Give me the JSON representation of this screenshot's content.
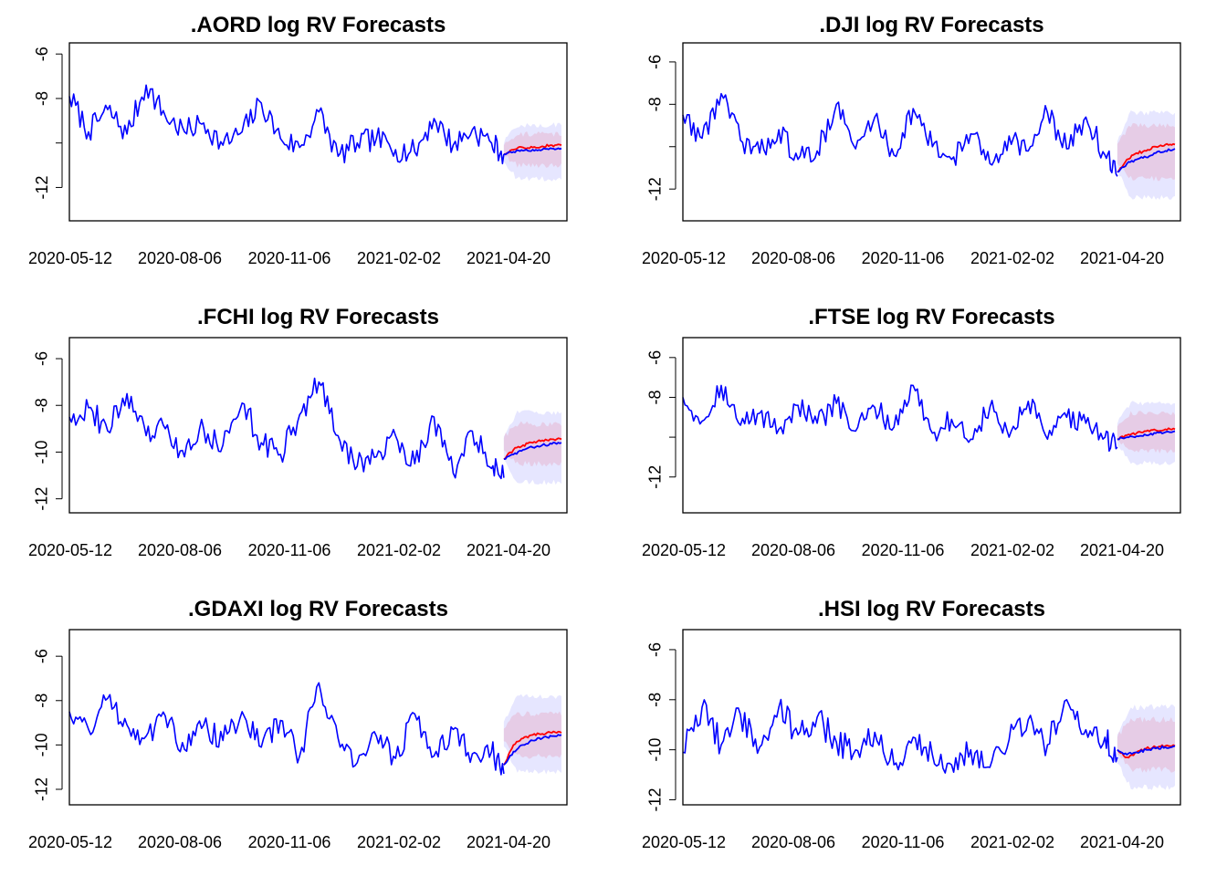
{
  "chart_data": [
    {
      "type": "line",
      "title": ".AORD log RV Forecasts",
      "x_tick_labels": [
        "2020-05-12",
        "2020-08-06",
        "2020-11-06",
        "2021-02-02",
        "2021-04-20"
      ],
      "y_ticks": [
        -6,
        -8,
        -12
      ],
      "ylim": [
        -13.5,
        -5.5
      ],
      "x_range": [
        "2020-05-12",
        "2021-05-10"
      ],
      "forecast_start": "2021-03-25",
      "grid": false,
      "series": [
        {
          "color": "#0000ff",
          "x": [
            "2020-05-12",
            "2020-05-26",
            "2020-06-09",
            "2020-06-23",
            "2020-07-07",
            "2020-07-21",
            "2020-08-04",
            "2020-08-18",
            "2020-09-01",
            "2020-09-15",
            "2020-09-29",
            "2020-10-13",
            "2020-10-27",
            "2020-11-10",
            "2020-11-24",
            "2020-12-08",
            "2020-12-22",
            "2021-01-05",
            "2021-01-19",
            "2021-02-02",
            "2021-02-16",
            "2021-03-02",
            "2021-03-16",
            "2021-03-25"
          ],
          "values": [
            -7.9,
            -9.5,
            -8.5,
            -9.6,
            -7.4,
            -8.8,
            -9.5,
            -9.1,
            -10.1,
            -9.5,
            -8.2,
            -9.8,
            -10.2,
            -8.6,
            -10.6,
            -10.0,
            -9.8,
            -10.3,
            -10.4,
            -8.9,
            -10.1,
            -9.4,
            -10.0,
            -10.5
          ]
        },
        {
          "color": "#ff0000",
          "x": [
            "2021-03-25",
            "2021-04-01",
            "2021-04-08",
            "2021-04-15",
            "2021-04-22",
            "2021-04-29",
            "2021-05-06"
          ],
          "values": [
            -10.5,
            -10.3,
            -10.2,
            -10.2,
            -10.15,
            -10.1,
            -10.1
          ]
        },
        {
          "color": "#0000ff",
          "x": [
            "2021-03-25",
            "2021-04-01",
            "2021-04-08",
            "2021-04-15",
            "2021-04-22",
            "2021-04-29",
            "2021-05-06"
          ],
          "values": [
            -10.5,
            -10.4,
            -10.35,
            -10.3,
            -10.3,
            -10.25,
            -10.25
          ]
        }
      ],
      "bands": [
        {
          "color": "#e6e6ff",
          "upper": -9.2,
          "lower": -11.6
        },
        {
          "color": "#e6cce6",
          "upper": -9.6,
          "lower": -11.0
        }
      ]
    },
    {
      "type": "line",
      "title": ".DJI log RV Forecasts",
      "x_tick_labels": [
        "2020-05-12",
        "2020-08-06",
        "2020-11-06",
        "2021-02-02",
        "2021-04-20"
      ],
      "y_ticks": [
        -6,
        -8,
        -12
      ],
      "ylim": [
        -13.5,
        -5.1
      ],
      "x_range": [
        "2020-05-12",
        "2021-05-10"
      ],
      "forecast_start": "2021-03-25",
      "grid": false,
      "series": [
        {
          "color": "#0000ff",
          "x": [
            "2020-05-12",
            "2020-05-26",
            "2020-06-09",
            "2020-06-23",
            "2020-07-07",
            "2020-07-21",
            "2020-08-04",
            "2020-08-18",
            "2020-09-01",
            "2020-09-15",
            "2020-09-29",
            "2020-10-13",
            "2020-10-27",
            "2020-11-10",
            "2020-11-24",
            "2020-12-08",
            "2020-12-22",
            "2021-01-05",
            "2021-01-19",
            "2021-02-02",
            "2021-02-16",
            "2021-03-02",
            "2021-03-16",
            "2021-03-25"
          ],
          "values": [
            -8.5,
            -9.6,
            -7.5,
            -9.7,
            -10.3,
            -9.2,
            -10.6,
            -10.2,
            -8.0,
            -10.1,
            -8.6,
            -10.4,
            -8.2,
            -10.0,
            -10.6,
            -9.4,
            -10.8,
            -9.5,
            -10.2,
            -8.4,
            -10.1,
            -8.6,
            -10.4,
            -11.4
          ]
        },
        {
          "color": "#ff0000",
          "x": [
            "2021-03-25",
            "2021-04-01",
            "2021-04-08",
            "2021-04-15",
            "2021-04-22",
            "2021-04-29",
            "2021-05-06"
          ],
          "values": [
            -11.2,
            -10.6,
            -10.3,
            -10.2,
            -10.0,
            -9.9,
            -9.9
          ]
        },
        {
          "color": "#0000ff",
          "x": [
            "2021-03-25",
            "2021-04-01",
            "2021-04-08",
            "2021-04-15",
            "2021-04-22",
            "2021-04-29",
            "2021-05-06"
          ],
          "values": [
            -11.2,
            -10.8,
            -10.6,
            -10.5,
            -10.3,
            -10.2,
            -10.1
          ]
        }
      ],
      "bands": [
        {
          "color": "#e6e6ff",
          "upper": -8.4,
          "lower": -12.4
        },
        {
          "color": "#e6cce6",
          "upper": -9.0,
          "lower": -11.5
        }
      ]
    },
    {
      "type": "line",
      "title": ".FCHI log RV Forecasts",
      "x_tick_labels": [
        "2020-05-12",
        "2020-08-06",
        "2020-11-06",
        "2021-02-02",
        "2021-04-20"
      ],
      "y_ticks": [
        -6,
        -8,
        -10,
        -12
      ],
      "ylim": [
        -12.6,
        -5.1
      ],
      "x_range": [
        "2020-05-12",
        "2021-05-10"
      ],
      "forecast_start": "2021-03-25",
      "grid": false,
      "series": [
        {
          "color": "#0000ff",
          "x": [
            "2020-05-12",
            "2020-05-26",
            "2020-06-09",
            "2020-06-23",
            "2020-07-07",
            "2020-07-21",
            "2020-08-04",
            "2020-08-18",
            "2020-09-01",
            "2020-09-15",
            "2020-09-29",
            "2020-10-13",
            "2020-10-27",
            "2020-11-10",
            "2020-11-24",
            "2020-12-08",
            "2020-12-22",
            "2021-01-05",
            "2021-01-19",
            "2021-02-02",
            "2021-02-16",
            "2021-03-02",
            "2021-03-16",
            "2021-03-25"
          ],
          "values": [
            -8.5,
            -8.1,
            -9.1,
            -7.5,
            -9.3,
            -9.0,
            -10.2,
            -9.0,
            -9.7,
            -7.9,
            -9.6,
            -10.1,
            -8.4,
            -7.0,
            -9.3,
            -10.6,
            -10.2,
            -9.3,
            -10.5,
            -8.5,
            -10.9,
            -9.1,
            -10.7,
            -11.1
          ]
        },
        {
          "color": "#ff0000",
          "x": [
            "2021-03-25",
            "2021-04-01",
            "2021-04-08",
            "2021-04-15",
            "2021-04-22",
            "2021-04-29",
            "2021-05-06"
          ],
          "values": [
            -10.3,
            -9.9,
            -9.7,
            -9.6,
            -9.5,
            -9.45,
            -9.45
          ]
        },
        {
          "color": "#0000ff",
          "x": [
            "2021-03-25",
            "2021-04-01",
            "2021-04-08",
            "2021-04-15",
            "2021-04-22",
            "2021-04-29",
            "2021-05-06"
          ],
          "values": [
            -10.3,
            -10.1,
            -9.9,
            -9.8,
            -9.7,
            -9.65,
            -9.6
          ]
        }
      ],
      "bands": [
        {
          "color": "#e6e6ff",
          "upper": -8.3,
          "lower": -11.3
        },
        {
          "color": "#e6cce6",
          "upper": -8.8,
          "lower": -10.5
        }
      ]
    },
    {
      "type": "line",
      "title": ".FTSE log RV Forecasts",
      "x_tick_labels": [
        "2020-05-12",
        "2020-08-06",
        "2020-11-06",
        "2021-02-02",
        "2021-04-20"
      ],
      "y_ticks": [
        -6,
        -8,
        -12
      ],
      "ylim": [
        -13.8,
        -5.0
      ],
      "x_range": [
        "2020-05-12",
        "2021-05-10"
      ],
      "forecast_start": "2021-03-25",
      "grid": false,
      "series": [
        {
          "color": "#0000ff",
          "x": [
            "2020-05-12",
            "2020-05-26",
            "2020-06-09",
            "2020-06-23",
            "2020-07-07",
            "2020-07-21",
            "2020-08-04",
            "2020-08-18",
            "2020-09-01",
            "2020-09-15",
            "2020-09-29",
            "2020-10-13",
            "2020-10-27",
            "2020-11-10",
            "2020-11-24",
            "2020-12-08",
            "2020-12-22",
            "2021-01-05",
            "2021-01-19",
            "2021-02-02",
            "2021-02-16",
            "2021-03-02",
            "2021-03-16",
            "2021-03-25"
          ],
          "values": [
            -8.0,
            -9.2,
            -7.4,
            -9.4,
            -8.8,
            -9.6,
            -8.4,
            -9.3,
            -8.3,
            -9.7,
            -8.5,
            -9.5,
            -7.4,
            -9.8,
            -9.1,
            -10.1,
            -8.5,
            -10.0,
            -8.2,
            -10.1,
            -9.0,
            -9.3,
            -10.0,
            -10.5
          ]
        },
        {
          "color": "#ff0000",
          "x": [
            "2021-03-25",
            "2021-04-01",
            "2021-04-08",
            "2021-04-15",
            "2021-04-22",
            "2021-04-29",
            "2021-05-06"
          ],
          "values": [
            -10.1,
            -9.9,
            -9.8,
            -9.7,
            -9.65,
            -9.6,
            -9.6
          ]
        },
        {
          "color": "#0000ff",
          "x": [
            "2021-03-25",
            "2021-04-01",
            "2021-04-08",
            "2021-04-15",
            "2021-04-22",
            "2021-04-29",
            "2021-05-06"
          ],
          "values": [
            -10.1,
            -10.0,
            -9.95,
            -9.9,
            -9.8,
            -9.75,
            -9.7
          ]
        }
      ],
      "bands": [
        {
          "color": "#e6e6ff",
          "upper": -8.3,
          "lower": -11.3
        },
        {
          "color": "#e6cce6",
          "upper": -8.8,
          "lower": -10.7
        }
      ]
    },
    {
      "type": "line",
      "title": ".GDAXI log RV Forecasts",
      "x_tick_labels": [
        "2020-05-12",
        "2020-08-06",
        "2020-11-06",
        "2021-02-02",
        "2021-04-20"
      ],
      "y_ticks": [
        -6,
        -8,
        -10,
        -12
      ],
      "ylim": [
        -12.7,
        -4.8
      ],
      "x_range": [
        "2020-05-12",
        "2021-05-10"
      ],
      "forecast_start": "2021-03-25",
      "grid": false,
      "series": [
        {
          "color": "#0000ff",
          "x": [
            "2020-05-12",
            "2020-05-26",
            "2020-06-09",
            "2020-06-23",
            "2020-07-07",
            "2020-07-21",
            "2020-08-04",
            "2020-08-18",
            "2020-09-01",
            "2020-09-15",
            "2020-09-29",
            "2020-10-13",
            "2020-10-27",
            "2020-11-10",
            "2020-11-24",
            "2020-12-08",
            "2020-12-22",
            "2021-01-05",
            "2021-01-19",
            "2021-02-02",
            "2021-02-16",
            "2021-03-02",
            "2021-03-16",
            "2021-03-25"
          ],
          "values": [
            -8.5,
            -9.3,
            -7.9,
            -9.1,
            -9.6,
            -8.7,
            -10.2,
            -9.1,
            -9.8,
            -8.5,
            -10.1,
            -8.9,
            -10.5,
            -7.2,
            -9.7,
            -10.8,
            -9.6,
            -10.6,
            -8.6,
            -10.5,
            -9.3,
            -10.4,
            -10.3,
            -11.3
          ]
        },
        {
          "color": "#ff0000",
          "x": [
            "2021-03-25",
            "2021-04-01",
            "2021-04-08",
            "2021-04-15",
            "2021-04-22",
            "2021-04-29",
            "2021-05-06"
          ],
          "values": [
            -10.9,
            -10.0,
            -9.7,
            -9.55,
            -9.5,
            -9.45,
            -9.45
          ]
        },
        {
          "color": "#0000ff",
          "x": [
            "2021-03-25",
            "2021-04-01",
            "2021-04-08",
            "2021-04-15",
            "2021-04-22",
            "2021-04-29",
            "2021-05-06"
          ],
          "values": [
            -10.9,
            -10.3,
            -10.0,
            -9.8,
            -9.7,
            -9.6,
            -9.55
          ]
        }
      ],
      "bands": [
        {
          "color": "#e6e6ff",
          "upper": -7.8,
          "lower": -11.2
        },
        {
          "color": "#e6cce6",
          "upper": -8.6,
          "lower": -10.5
        }
      ]
    },
    {
      "type": "line",
      "title": ".HSI log RV Forecasts",
      "x_tick_labels": [
        "2020-05-12",
        "2020-08-06",
        "2020-11-06",
        "2021-02-02",
        "2021-04-20"
      ],
      "y_ticks": [
        -6,
        -8,
        -10,
        -12
      ],
      "ylim": [
        -12.2,
        -5.2
      ],
      "x_range": [
        "2020-05-12",
        "2021-05-10"
      ],
      "forecast_start": "2021-03-25",
      "grid": false,
      "series": [
        {
          "color": "#0000ff",
          "x": [
            "2020-05-12",
            "2020-05-26",
            "2020-06-09",
            "2020-06-23",
            "2020-07-07",
            "2020-07-21",
            "2020-08-04",
            "2020-08-18",
            "2020-09-01",
            "2020-09-15",
            "2020-09-29",
            "2020-10-13",
            "2020-10-27",
            "2020-11-10",
            "2020-11-24",
            "2020-12-08",
            "2020-12-22",
            "2021-01-05",
            "2021-01-19",
            "2021-02-02",
            "2021-02-16",
            "2021-03-02",
            "2021-03-16",
            "2021-03-25"
          ],
          "values": [
            -10.1,
            -8.3,
            -9.8,
            -8.6,
            -9.9,
            -8.3,
            -9.4,
            -8.7,
            -9.7,
            -10.0,
            -9.3,
            -10.6,
            -9.5,
            -10.2,
            -10.6,
            -10.0,
            -10.7,
            -9.6,
            -8.8,
            -9.8,
            -8.0,
            -9.2,
            -9.5,
            -10.3
          ]
        },
        {
          "color": "#ff0000",
          "x": [
            "2021-03-25",
            "2021-04-01",
            "2021-04-08",
            "2021-04-15",
            "2021-04-22",
            "2021-04-29",
            "2021-05-06"
          ],
          "values": [
            -10.0,
            -10.3,
            -10.1,
            -9.95,
            -9.9,
            -9.85,
            -9.85
          ]
        },
        {
          "color": "#0000ff",
          "x": [
            "2021-03-25",
            "2021-04-01",
            "2021-04-08",
            "2021-04-15",
            "2021-04-22",
            "2021-04-29",
            "2021-05-06"
          ],
          "values": [
            -10.0,
            -10.2,
            -10.1,
            -10.0,
            -9.95,
            -9.9,
            -9.85
          ]
        }
      ],
      "bands": [
        {
          "color": "#e6e6ff",
          "upper": -8.3,
          "lower": -11.5
        },
        {
          "color": "#e6cce6",
          "upper": -8.8,
          "lower": -10.8
        }
      ]
    }
  ]
}
